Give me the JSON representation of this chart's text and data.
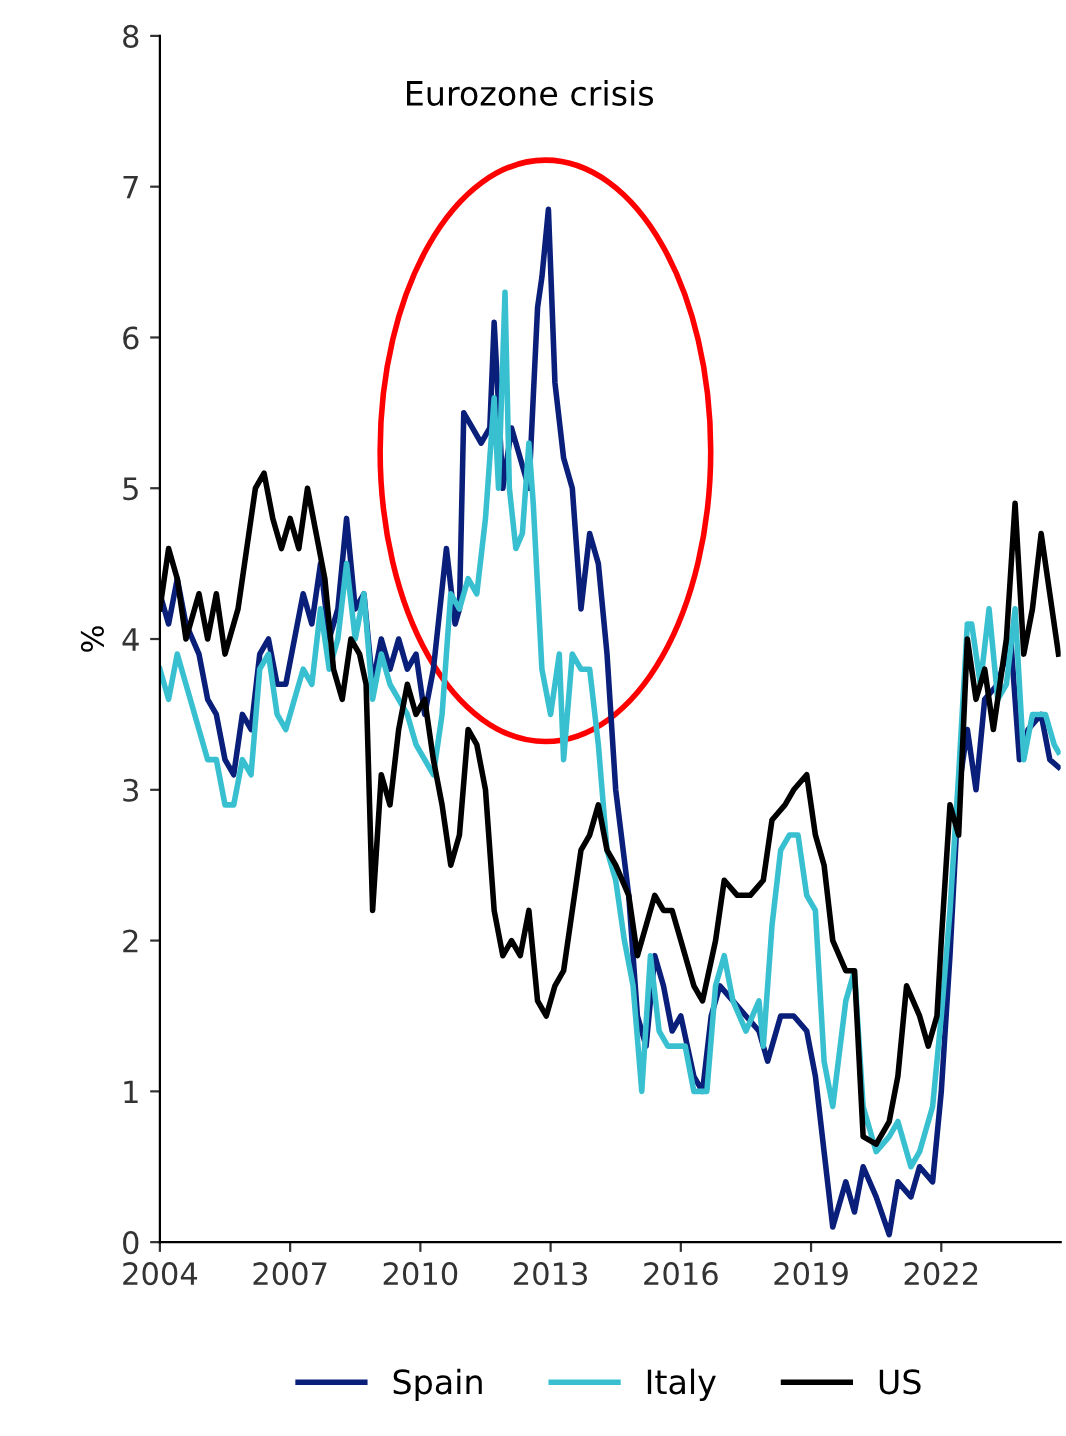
{
  "chart_data": {
    "type": "line",
    "ylabel": "%",
    "annotations": [
      "Eurozone crisis"
    ],
    "xlim": [
      2004,
      2024.75
    ],
    "xticks": [
      2004,
      2007,
      2010,
      2013,
      2016,
      2019,
      2022
    ],
    "ylim": [
      0,
      8
    ],
    "yticks": [
      0,
      1,
      2,
      3,
      4,
      5,
      6,
      7,
      8
    ],
    "grid": false,
    "legend": "bottom",
    "marker": "none",
    "line_style": "solid",
    "series": [
      {
        "name": "Spain",
        "color": "#0a1f7a",
        "x": [
          2004.0,
          2004.2,
          2004.4,
          2004.6,
          2004.9,
          2005.1,
          2005.3,
          2005.5,
          2005.7,
          2005.9,
          2006.1,
          2006.3,
          2006.5,
          2006.7,
          2006.9,
          2007.1,
          2007.3,
          2007.5,
          2007.7,
          2007.9,
          2008.1,
          2008.3,
          2008.5,
          2008.7,
          2008.9,
          2009.1,
          2009.3,
          2009.5,
          2009.7,
          2009.9,
          2010.1,
          2010.3,
          2010.6,
          2010.8,
          2010.9,
          2011.0,
          2011.2,
          2011.4,
          2011.6,
          2011.7,
          2011.9,
          2012.1,
          2012.3,
          2012.5,
          2012.7,
          2012.8,
          2012.95,
          2013.1,
          2013.3,
          2013.5,
          2013.7,
          2013.9,
          2014.1,
          2014.3,
          2014.5,
          2014.8,
          2015.0,
          2015.2,
          2015.4,
          2015.6,
          2015.8,
          2016.0,
          2016.3,
          2016.5,
          2016.7,
          2016.9,
          2017.2,
          2017.5,
          2017.8,
          2018.0,
          2018.3,
          2018.6,
          2018.9,
          2019.1,
          2019.3,
          2019.5,
          2019.8,
          2020.0,
          2020.2,
          2020.5,
          2020.8,
          2021.0,
          2021.3,
          2021.5,
          2021.8,
          2022.0,
          2022.2,
          2022.4,
          2022.6,
          2022.8,
          2023.0,
          2023.3,
          2023.6,
          2023.8,
          2024.0,
          2024.3,
          2024.5,
          2024.7
        ],
        "values": [
          4.3,
          4.1,
          4.4,
          4.1,
          3.9,
          3.6,
          3.5,
          3.2,
          3.1,
          3.5,
          3.4,
          3.9,
          4.0,
          3.7,
          3.7,
          4.0,
          4.3,
          4.1,
          4.5,
          4.0,
          4.2,
          4.8,
          4.2,
          4.3,
          3.7,
          4.0,
          3.8,
          4.0,
          3.8,
          3.9,
          3.5,
          3.8,
          4.6,
          4.1,
          4.2,
          5.5,
          5.4,
          5.3,
          5.4,
          6.1,
          5.0,
          5.4,
          5.2,
          5.0,
          6.2,
          6.4,
          6.85,
          5.7,
          5.2,
          5.0,
          4.2,
          4.7,
          4.5,
          3.9,
          3.0,
          2.3,
          1.5,
          1.3,
          1.9,
          1.7,
          1.4,
          1.5,
          1.1,
          1.0,
          1.5,
          1.7,
          1.6,
          1.5,
          1.4,
          1.2,
          1.5,
          1.5,
          1.4,
          1.1,
          0.6,
          0.1,
          0.4,
          0.2,
          0.5,
          0.3,
          0.05,
          0.4,
          0.3,
          0.5,
          0.4,
          1.0,
          1.9,
          3.0,
          3.4,
          3.0,
          3.6,
          3.7,
          4.0,
          3.2,
          3.4,
          3.5,
          3.2,
          3.15
        ]
      },
      {
        "name": "Italy",
        "color": "#38c0d0",
        "x": [
          2004.0,
          2004.2,
          2004.4,
          2004.6,
          2004.9,
          2005.1,
          2005.3,
          2005.5,
          2005.7,
          2005.9,
          2006.1,
          2006.3,
          2006.5,
          2006.7,
          2006.9,
          2007.1,
          2007.3,
          2007.5,
          2007.7,
          2007.9,
          2008.1,
          2008.3,
          2008.5,
          2008.7,
          2008.9,
          2009.1,
          2009.3,
          2009.5,
          2009.7,
          2009.9,
          2010.1,
          2010.3,
          2010.5,
          2010.7,
          2010.9,
          2011.1,
          2011.3,
          2011.5,
          2011.7,
          2011.8,
          2011.95,
          2012.05,
          2012.2,
          2012.35,
          2012.5,
          2012.6,
          2012.8,
          2013.0,
          2013.2,
          2013.3,
          2013.5,
          2013.7,
          2013.9,
          2014.1,
          2014.3,
          2014.5,
          2014.7,
          2014.9,
          2015.1,
          2015.3,
          2015.5,
          2015.7,
          2015.9,
          2016.1,
          2016.3,
          2016.6,
          2016.8,
          2017.0,
          2017.2,
          2017.5,
          2017.8,
          2017.9,
          2018.1,
          2018.3,
          2018.5,
          2018.7,
          2018.9,
          2019.1,
          2019.3,
          2019.5,
          2019.8,
          2020.0,
          2020.2,
          2020.5,
          2020.8,
          2021.0,
          2021.3,
          2021.5,
          2021.8,
          2022.0,
          2022.2,
          2022.4,
          2022.6,
          2022.7,
          2022.9,
          2023.1,
          2023.3,
          2023.5,
          2023.7,
          2023.9,
          2024.1,
          2024.4,
          2024.6,
          2024.7
        ],
        "values": [
          3.8,
          3.6,
          3.9,
          3.7,
          3.4,
          3.2,
          3.2,
          2.9,
          2.9,
          3.2,
          3.1,
          3.8,
          3.9,
          3.5,
          3.4,
          3.6,
          3.8,
          3.7,
          4.2,
          3.8,
          4.0,
          4.5,
          4.0,
          4.3,
          3.6,
          3.9,
          3.7,
          3.6,
          3.5,
          3.3,
          3.2,
          3.1,
          3.5,
          4.3,
          4.2,
          4.4,
          4.3,
          4.8,
          5.6,
          5.0,
          6.3,
          5.0,
          4.6,
          4.7,
          5.3,
          4.9,
          3.8,
          3.5,
          3.9,
          3.2,
          3.9,
          3.8,
          3.8,
          3.3,
          2.6,
          2.4,
          2.0,
          1.7,
          1.0,
          1.9,
          1.4,
          1.3,
          1.3,
          1.3,
          1.0,
          1.0,
          1.7,
          1.9,
          1.6,
          1.4,
          1.6,
          1.3,
          2.1,
          2.6,
          2.7,
          2.7,
          2.3,
          2.2,
          1.2,
          0.9,
          1.6,
          1.8,
          0.9,
          0.6,
          0.7,
          0.8,
          0.5,
          0.6,
          0.9,
          1.5,
          2.2,
          3.1,
          4.1,
          4.1,
          3.7,
          4.2,
          3.6,
          3.7,
          4.2,
          3.2,
          3.5,
          3.5,
          3.3,
          3.25
        ]
      },
      {
        "name": "US",
        "color": "#000000",
        "x": [
          2004.0,
          2004.2,
          2004.4,
          2004.6,
          2004.9,
          2005.1,
          2005.3,
          2005.5,
          2005.8,
          2006.0,
          2006.2,
          2006.4,
          2006.6,
          2006.8,
          2007.0,
          2007.2,
          2007.4,
          2007.6,
          2007.8,
          2008.0,
          2008.2,
          2008.4,
          2008.6,
          2008.75,
          2008.9,
          2009.1,
          2009.3,
          2009.5,
          2009.7,
          2009.9,
          2010.1,
          2010.3,
          2010.5,
          2010.7,
          2010.9,
          2011.1,
          2011.3,
          2011.5,
          2011.7,
          2011.9,
          2012.1,
          2012.3,
          2012.5,
          2012.7,
          2012.9,
          2013.1,
          2013.3,
          2013.5,
          2013.7,
          2013.9,
          2014.1,
          2014.3,
          2014.5,
          2014.8,
          2015.0,
          2015.2,
          2015.4,
          2015.6,
          2015.8,
          2016.0,
          2016.3,
          2016.5,
          2016.8,
          2017.0,
          2017.3,
          2017.6,
          2017.9,
          2018.1,
          2018.4,
          2018.6,
          2018.9,
          2019.1,
          2019.3,
          2019.5,
          2019.8,
          2020.0,
          2020.2,
          2020.5,
          2020.8,
          2021.0,
          2021.2,
          2021.5,
          2021.7,
          2021.9,
          2022.0,
          2022.2,
          2022.4,
          2022.6,
          2022.8,
          2023.0,
          2023.2,
          2023.5,
          2023.7,
          2023.9,
          2024.1,
          2024.3,
          2024.5,
          2024.7
        ],
        "values": [
          4.2,
          4.6,
          4.4,
          4.0,
          4.3,
          4.0,
          4.3,
          3.9,
          4.2,
          4.6,
          5.0,
          5.1,
          4.8,
          4.6,
          4.8,
          4.6,
          5.0,
          4.7,
          4.4,
          3.8,
          3.6,
          4.0,
          3.9,
          3.7,
          2.2,
          3.1,
          2.9,
          3.4,
          3.7,
          3.5,
          3.6,
          3.2,
          2.9,
          2.5,
          2.7,
          3.4,
          3.3,
          3.0,
          2.2,
          1.9,
          2.0,
          1.9,
          2.2,
          1.6,
          1.5,
          1.7,
          1.8,
          2.2,
          2.6,
          2.7,
          2.9,
          2.6,
          2.5,
          2.3,
          1.9,
          2.1,
          2.3,
          2.2,
          2.2,
          2.0,
          1.7,
          1.6,
          2.0,
          2.4,
          2.3,
          2.3,
          2.4,
          2.8,
          2.9,
          3.0,
          3.1,
          2.7,
          2.5,
          2.0,
          1.8,
          1.8,
          0.7,
          0.65,
          0.8,
          1.1,
          1.7,
          1.5,
          1.3,
          1.5,
          2.0,
          2.9,
          2.7,
          4.0,
          3.6,
          3.8,
          3.4,
          4.0,
          4.9,
          3.9,
          4.2,
          4.7,
          4.3,
          3.9
        ]
      }
    ]
  }
}
